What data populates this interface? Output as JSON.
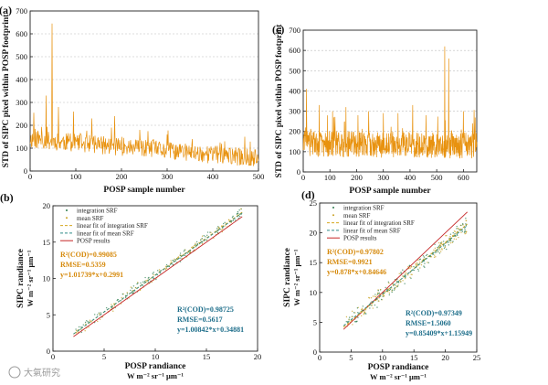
{
  "colors": {
    "series_orange": "#e8920f",
    "integration_srf": "#2e7d4f",
    "mean_srf": "#c8a020",
    "fit_integration": "#d6a81e",
    "fit_mean": "#2f8a86",
    "posp_results": "#c62828",
    "annot_orange": "#d68a0c",
    "annot_teal": "#1f6f8b",
    "grid": "#bdbdbd"
  },
  "watermark": "大氣研究",
  "chart_data": [
    {
      "id": "a",
      "panel_label": "(a)",
      "type": "line",
      "xlabel": "POSP sample number",
      "ylabel": "STD of SIPC pixel within POSP footprint",
      "xlim": [
        0,
        500
      ],
      "ylim": [
        0,
        700
      ],
      "xticks": [
        0,
        100,
        200,
        300,
        400,
        500
      ],
      "yticks": [
        0,
        100,
        200,
        300,
        400,
        500,
        600,
        700
      ],
      "grid": true,
      "peaks": [
        {
          "x": 8,
          "y": 255
        },
        {
          "x": 35,
          "y": 330
        },
        {
          "x": 48,
          "y": 645
        },
        {
          "x": 62,
          "y": 280
        },
        {
          "x": 95,
          "y": 260
        },
        {
          "x": 135,
          "y": 230
        },
        {
          "x": 185,
          "y": 240
        },
        {
          "x": 240,
          "y": 180
        },
        {
          "x": 300,
          "y": 160
        },
        {
          "x": 355,
          "y": 140
        },
        {
          "x": 410,
          "y": 110
        },
        {
          "x": 470,
          "y": 150
        }
      ],
      "baseline": {
        "start": 140,
        "end": 55,
        "noise": 40
      }
    },
    {
      "id": "c",
      "panel_label": "(c)",
      "type": "line",
      "xlabel": "POSP sample number",
      "ylabel": "STD of SIPC pixel within POSP footprint",
      "xlim": [
        0,
        650
      ],
      "ylim": [
        0,
        700
      ],
      "xticks": [
        0,
        100,
        200,
        300,
        400,
        500,
        600
      ],
      "yticks": [
        0,
        100,
        200,
        300,
        400,
        500,
        600,
        700
      ],
      "grid": true,
      "peaks": [
        {
          "x": 12,
          "y": 410
        },
        {
          "x": 60,
          "y": 330
        },
        {
          "x": 110,
          "y": 300
        },
        {
          "x": 160,
          "y": 320
        },
        {
          "x": 205,
          "y": 280
        },
        {
          "x": 245,
          "y": 300
        },
        {
          "x": 300,
          "y": 290
        },
        {
          "x": 355,
          "y": 290
        },
        {
          "x": 410,
          "y": 330
        },
        {
          "x": 460,
          "y": 280
        },
        {
          "x": 530,
          "y": 620
        },
        {
          "x": 545,
          "y": 560
        },
        {
          "x": 600,
          "y": 300
        },
        {
          "x": 635,
          "y": 240
        }
      ],
      "baseline": {
        "start": 140,
        "end": 130,
        "noise": 65
      }
    },
    {
      "id": "b",
      "panel_label": "(b)",
      "type": "scatter",
      "xlabel": "POSP randiance",
      "xlabel_unit": "W m⁻² sr⁻¹ μm⁻¹",
      "ylabel": "SIPC randiance",
      "ylabel_unit": "W m⁻² sr⁻¹ μm⁻¹",
      "xlim": [
        0,
        20
      ],
      "ylim": [
        0,
        20
      ],
      "xticks": [
        0,
        5,
        10,
        15,
        20
      ],
      "yticks": [
        0,
        5,
        10,
        15,
        20
      ],
      "grid": false,
      "legend": [
        "integration SRF",
        "mean SRF",
        "linear fit of integration SRF",
        "linear fit of mean SRF",
        "POSP results"
      ],
      "data_range": [
        2,
        18.5
      ],
      "fits": {
        "integration": {
          "slope": 1.01739,
          "intercept": 0.2991
        },
        "mean": {
          "slope": 1.00842,
          "intercept": 0.34881
        },
        "posp": {
          "slope": 1,
          "intercept": 0
        }
      },
      "annotations": [
        {
          "lines": [
            "R²(COD)=0.99085",
            "RMSE=0.5359",
            "y=1.01739*x+0.2991"
          ],
          "color": "annot_orange"
        },
        {
          "lines": [
            "R²(COD)=0.98725",
            "RMSE=0.5617",
            "y=1.00842*x+0.34881"
          ],
          "color": "annot_teal"
        }
      ]
    },
    {
      "id": "d",
      "panel_label": "(d)",
      "type": "scatter",
      "xlabel": "POSP randiance",
      "xlabel_unit": "W m⁻² sr⁻¹ μm⁻¹",
      "ylabel": "SIPC randiance",
      "ylabel_unit": "W m⁻² sr⁻¹ μm⁻¹",
      "xlim": [
        0,
        25
      ],
      "ylim": [
        0,
        25
      ],
      "xticks": [
        0,
        5,
        10,
        15,
        20,
        25
      ],
      "yticks": [
        0,
        5,
        10,
        15,
        20,
        25
      ],
      "grid": false,
      "legend": [
        "integration SRF",
        "mean SRF",
        "linear fit of integration SRF",
        "linear fit of mean SRF",
        "POSP results"
      ],
      "data_range": [
        3.8,
        23.5
      ],
      "fits": {
        "integration": {
          "slope": 0.878,
          "intercept": 0.84646
        },
        "mean": {
          "slope": 0.85409,
          "intercept": 1.15949
        },
        "posp": {
          "slope": 1,
          "intercept": 0
        }
      },
      "annotations": [
        {
          "lines": [
            "R²(COD)=0.97802",
            "RMSE=0.9921",
            "y=0.878*x+0.84646"
          ],
          "color": "annot_orange"
        },
        {
          "lines": [
            "R²(COD)=0.97349",
            "RMSE=1.5060",
            "y=0.85409*x+1.15949"
          ],
          "color": "annot_teal"
        }
      ]
    }
  ]
}
